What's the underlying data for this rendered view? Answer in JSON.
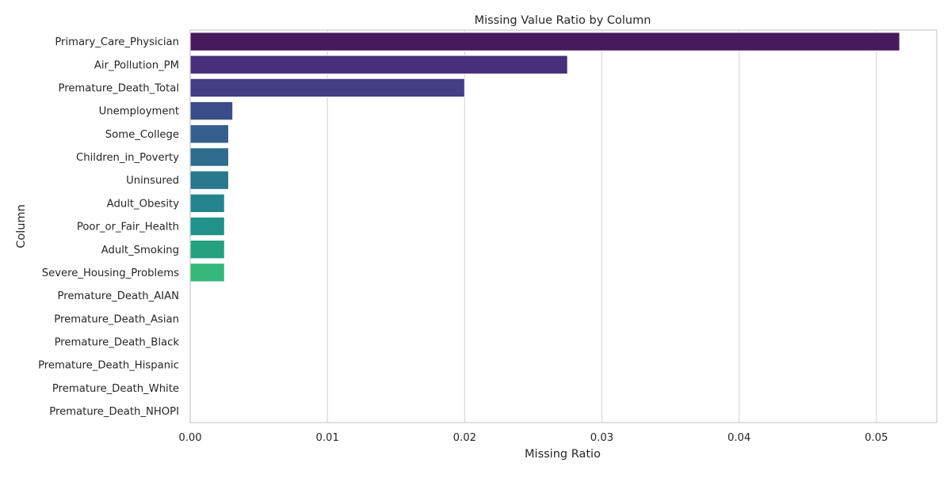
{
  "chart_data": {
    "type": "bar",
    "orientation": "horizontal",
    "title": "Missing Value Ratio by Column",
    "xlabel": "Missing Ratio",
    "ylabel": "Column",
    "xlim": [
      0,
      0.0544
    ],
    "xticks": [
      0,
      0.01,
      0.02,
      0.03,
      0.04,
      0.05
    ],
    "xtick_labels": [
      "0.00",
      "0.01",
      "0.02",
      "0.03",
      "0.04",
      "0.05"
    ],
    "grid": "vertical",
    "palette": "viridis",
    "categories": [
      "Primary_Care_Physician",
      "Air_Pollution_PM",
      "Premature_Death_Total",
      "Unemployment",
      "Some_College",
      "Children_in_Poverty",
      "Uninsured",
      "Adult_Obesity",
      "Poor_or_Fair_Health",
      "Adult_Smoking",
      "Severe_Housing_Problems",
      "Premature_Death_AIAN",
      "Premature_Death_Asian",
      "Premature_Death_Black",
      "Premature_Death_Hispanic",
      "Premature_Death_White",
      "Premature_Death_NHOPI"
    ],
    "values": [
      0.0517,
      0.0275,
      0.02,
      0.0031,
      0.0028,
      0.0028,
      0.0028,
      0.0025,
      0.0025,
      0.0025,
      0.0025,
      0,
      0,
      0,
      0,
      0,
      0
    ],
    "colors": [
      "#471a5e",
      "#472f7d",
      "#433e85",
      "#3b4e8a",
      "#355f8d",
      "#2f6c8e",
      "#2a788e",
      "#25858e",
      "#21918c",
      "#26a17f",
      "#35b779",
      "#4ac16d",
      "#6ccd5a",
      "#90d743",
      "#b5de2b",
      "#dde318",
      "#f4e61e"
    ]
  }
}
